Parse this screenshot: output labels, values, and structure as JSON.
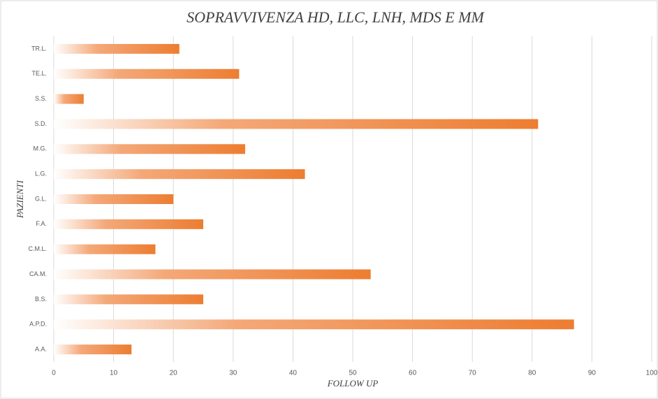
{
  "chart_data": {
    "type": "barh",
    "title": "SOPRAVVIVENZA HD, LLC, LNH, MDS E MM",
    "x_label": "FOLLOW UP",
    "y_label": "PAZIENTI",
    "categories": [
      "A.A.",
      "A.P.D.",
      "B.S.",
      "CA.M.",
      "C.M.L.",
      "F.A.",
      "G.L.",
      "L.G.",
      "M.G.",
      "S.D.",
      "S.S.",
      "TE.L.",
      "TR.L."
    ],
    "values": [
      13,
      87,
      25,
      53,
      17,
      25,
      20,
      42,
      32,
      81,
      5,
      31,
      21
    ],
    "color": "#ed7d31",
    "xlim": [
      0,
      100
    ],
    "xticks": [
      0,
      10,
      20,
      30,
      40,
      50,
      60,
      70,
      80,
      90,
      100
    ],
    "grid": true
  }
}
